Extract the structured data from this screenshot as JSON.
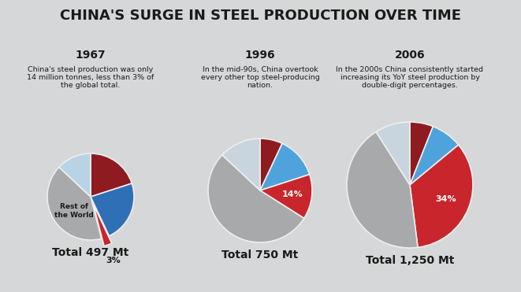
{
  "title": "CHINA'S SURGE IN STEEL PRODUCTION OVER TIME",
  "chart_data": [
    {
      "type": "pie",
      "title": "1967",
      "subtitle": "China's steel production was only 14 million tonnes, less than 3% of the global total.",
      "annotations": [
        "Total 497 Mt"
      ],
      "categories": [
        null,
        null,
        null,
        "Rest of the World",
        null
      ],
      "values": [
        20,
        23,
        3,
        41,
        13
      ],
      "value_labels": [
        null,
        null,
        "3%",
        null,
        null
      ],
      "colors": [
        "#8e1b20",
        "#2f6fb6",
        "#c8262c",
        "#a7a9ab",
        "#b9d3e6"
      ],
      "data_labels": true
    },
    {
      "type": "pie",
      "title": "1996",
      "subtitle": "In the mid-90s, China overtook every other top steel-producing nation.",
      "annotations": [
        "Total 750 Mt"
      ],
      "categories": [
        null,
        null,
        null,
        null,
        null
      ],
      "values": [
        7,
        13,
        14,
        53,
        13
      ],
      "value_labels": [
        null,
        null,
        "14%",
        null,
        null
      ],
      "colors": [
        "#8e1b20",
        "#4ea3dc",
        "#c8262c",
        "#a7a9ab",
        "#c9d5de"
      ],
      "data_labels": true
    },
    {
      "type": "pie",
      "title": "2006",
      "subtitle": "In the 2000s China consistently started increasing its YoY steel production by double-digit percentages.",
      "annotations": [
        "Total 1,250 Mt"
      ],
      "categories": [
        null,
        null,
        null,
        null,
        null
      ],
      "values": [
        6,
        8,
        34,
        43,
        9
      ],
      "value_labels": [
        null,
        null,
        "34%",
        null,
        null
      ],
      "colors": [
        "#8e1b20",
        "#4ea3dc",
        "#c8262c",
        "#a7a9ab",
        "#c9d5de"
      ],
      "data_labels": true
    }
  ]
}
